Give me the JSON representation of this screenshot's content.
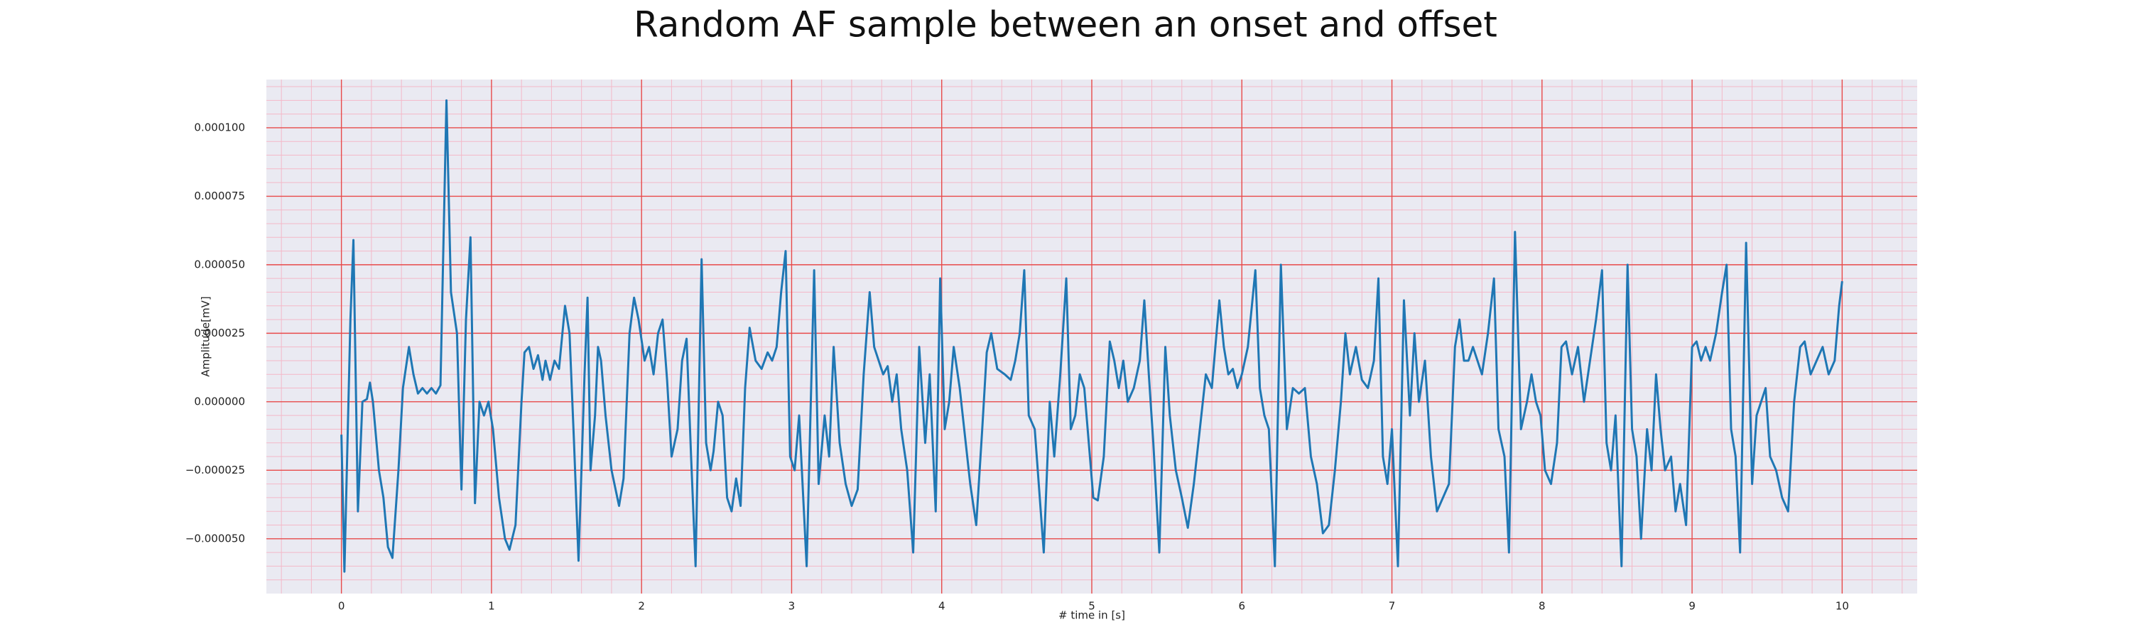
{
  "chart_data": {
    "type": "line",
    "title": "Random AF sample between an onset and offset",
    "xlabel": "# time in [s]",
    "ylabel": "Amplitude[mV]",
    "x": [
      0.0,
      0.02,
      0.06,
      0.08,
      0.11,
      0.14,
      0.17,
      0.19,
      0.21,
      0.25,
      0.28,
      0.31,
      0.34,
      0.38,
      0.41,
      0.45,
      0.48,
      0.51,
      0.54,
      0.57,
      0.6,
      0.63,
      0.66,
      0.7,
      0.73,
      0.77,
      0.8,
      0.83,
      0.86,
      0.89,
      0.92,
      0.95,
      0.98,
      1.01,
      1.05,
      1.09,
      1.12,
      1.16,
      1.2,
      1.22,
      1.25,
      1.28,
      1.31,
      1.34,
      1.36,
      1.39,
      1.42,
      1.45,
      1.49,
      1.52,
      1.55,
      1.58,
      1.62,
      1.64,
      1.66,
      1.69,
      1.71,
      1.73,
      1.76,
      1.8,
      1.85,
      1.88,
      1.92,
      1.95,
      1.98,
      2.02,
      2.05,
      2.08,
      2.11,
      2.14,
      2.17,
      2.2,
      2.24,
      2.27,
      2.3,
      2.33,
      2.36,
      2.4,
      2.43,
      2.46,
      2.48,
      2.51,
      2.54,
      2.57,
      2.6,
      2.63,
      2.66,
      2.69,
      2.72,
      2.76,
      2.8,
      2.84,
      2.87,
      2.9,
      2.93,
      2.96,
      2.99,
      3.02,
      3.05,
      3.1,
      3.15,
      3.18,
      3.22,
      3.25,
      3.28,
      3.32,
      3.36,
      3.4,
      3.44,
      3.48,
      3.52,
      3.55,
      3.58,
      3.61,
      3.64,
      3.67,
      3.7,
      3.73,
      3.77,
      3.81,
      3.85,
      3.89,
      3.92,
      3.96,
      3.99,
      4.02,
      4.05,
      4.08,
      4.12,
      4.16,
      4.19,
      4.23,
      4.27,
      4.3,
      4.33,
      4.37,
      4.42,
      4.46,
      4.49,
      4.52,
      4.55,
      4.58,
      4.62,
      4.68,
      4.72,
      4.75,
      4.79,
      4.83,
      4.86,
      4.89,
      4.92,
      4.95,
      4.98,
      5.01,
      5.04,
      5.08,
      5.12,
      5.15,
      5.18,
      5.21,
      5.24,
      5.28,
      5.32,
      5.35,
      5.38,
      5.41,
      5.45,
      5.49,
      5.52,
      5.56,
      5.6,
      5.64,
      5.68,
      5.72,
      5.76,
      5.8,
      5.85,
      5.88,
      5.91,
      5.94,
      5.97,
      6.0,
      6.04,
      6.09,
      6.12,
      6.15,
      6.18,
      6.22,
      6.26,
      6.3,
      6.34,
      6.38,
      6.42,
      6.46,
      6.5,
      6.54,
      6.58,
      6.62,
      6.66,
      6.69,
      6.72,
      6.76,
      6.8,
      6.84,
      6.88,
      6.91,
      6.94,
      6.97,
      7.0,
      7.04,
      7.08,
      7.12,
      7.15,
      7.18,
      7.22,
      7.26,
      7.3,
      7.34,
      7.38,
      7.42,
      7.45,
      7.48,
      7.51,
      7.54,
      7.57,
      7.6,
      7.64,
      7.68,
      7.71,
      7.75,
      7.78,
      7.82,
      7.86,
      7.9,
      7.93,
      7.96,
      7.99,
      8.02,
      8.06,
      8.1,
      8.13,
      8.16,
      8.2,
      8.24,
      8.28,
      8.32,
      8.36,
      8.4,
      8.43,
      8.46,
      8.49,
      8.53,
      8.57,
      8.6,
      8.63,
      8.66,
      8.7,
      8.73,
      8.76,
      8.79,
      8.82,
      8.86,
      8.89,
      8.92,
      8.96,
      9.0,
      9.03,
      9.06,
      9.09,
      9.12,
      9.16,
      9.2,
      9.23,
      9.26,
      9.29,
      9.32,
      9.36,
      9.4,
      9.43,
      9.46,
      9.49,
      9.52,
      9.56,
      9.6,
      9.64,
      9.68,
      9.72,
      9.75,
      9.79,
      9.83,
      9.87,
      9.91,
      9.95,
      9.98,
      10.0
    ],
    "series": [
      {
        "color": "#1f77b4",
        "values": [
          -1.2e-05,
          -6.2e-05,
          3e-05,
          5.9e-05,
          -4e-05,
          0,
          1e-06,
          7e-06,
          0,
          -2.5e-05,
          -3.5e-05,
          -5.3e-05,
          -5.7e-05,
          -2.5e-05,
          5e-06,
          2e-05,
          1e-05,
          3e-06,
          5e-06,
          3e-06,
          5e-06,
          3e-06,
          6e-06,
          0.00011,
          4e-05,
          2.5e-05,
          -3.2e-05,
          3e-05,
          6e-05,
          -3.7e-05,
          0,
          -5e-06,
          0,
          -1e-05,
          -3.5e-05,
          -5e-05,
          -5.4e-05,
          -4.5e-05,
          0,
          1.8e-05,
          2e-05,
          1.2e-05,
          1.7e-05,
          8e-06,
          1.5e-05,
          8e-06,
          1.5e-05,
          1.2e-05,
          3.5e-05,
          2.5e-05,
          -1.5e-05,
          -5.8e-05,
          1e-05,
          3.8e-05,
          -2.5e-05,
          -5e-06,
          2e-05,
          1.5e-05,
          -5e-06,
          -2.5e-05,
          -3.8e-05,
          -2.8e-05,
          2.5e-05,
          3.8e-05,
          3e-05,
          1.5e-05,
          2e-05,
          1e-05,
          2.5e-05,
          3e-05,
          8e-06,
          -2e-05,
          -1e-05,
          1.5e-05,
          2.3e-05,
          -2e-05,
          -6e-05,
          5.2e-05,
          -1.5e-05,
          -2.5e-05,
          -1.8e-05,
          0,
          -5e-06,
          -3.5e-05,
          -4e-05,
          -2.8e-05,
          -3.8e-05,
          5e-06,
          2.7e-05,
          1.5e-05,
          1.2e-05,
          1.8e-05,
          1.5e-05,
          2e-05,
          4e-05,
          5.5e-05,
          -2e-05,
          -2.5e-05,
          -5e-06,
          -6e-05,
          4.8e-05,
          -3e-05,
          -5e-06,
          -2e-05,
          2e-05,
          -1.5e-05,
          -3e-05,
          -3.8e-05,
          -3.2e-05,
          1e-05,
          4e-05,
          2e-05,
          1.5e-05,
          1e-05,
          1.3e-05,
          0,
          1e-05,
          -1e-05,
          -2.5e-05,
          -5.5e-05,
          2e-05,
          -1.5e-05,
          1e-05,
          -4e-05,
          4.5e-05,
          -1e-05,
          0,
          2e-05,
          5e-06,
          -1.5e-05,
          -3e-05,
          -4.5e-05,
          -1e-05,
          1.8e-05,
          2.5e-05,
          1.2e-05,
          1e-05,
          8e-06,
          1.5e-05,
          2.5e-05,
          4.8e-05,
          -5e-06,
          -1e-05,
          -5.5e-05,
          0,
          -2e-05,
          1e-05,
          4.5e-05,
          -1e-05,
          -5e-06,
          1e-05,
          5e-06,
          -1.5e-05,
          -3.5e-05,
          -3.6e-05,
          -2e-05,
          2.2e-05,
          1.5e-05,
          5e-06,
          1.5e-05,
          0,
          5e-06,
          1.5e-05,
          3.7e-05,
          1e-05,
          -1.5e-05,
          -5.5e-05,
          2e-05,
          -5e-06,
          -2.5e-05,
          -3.5e-05,
          -4.6e-05,
          -3e-05,
          -1e-05,
          1e-05,
          5e-06,
          3.7e-05,
          2e-05,
          1e-05,
          1.2e-05,
          5e-06,
          1e-05,
          2e-05,
          4.8e-05,
          5e-06,
          -5e-06,
          -1e-05,
          -6e-05,
          5e-05,
          -1e-05,
          5e-06,
          3e-06,
          5e-06,
          -2e-05,
          -3e-05,
          -4.8e-05,
          -4.5e-05,
          -2.5e-05,
          0,
          2.5e-05,
          1e-05,
          2e-05,
          8e-06,
          5e-06,
          1.5e-05,
          4.5e-05,
          -2e-05,
          -3e-05,
          -1e-05,
          -6e-05,
          3.7e-05,
          -5e-06,
          2.5e-05,
          0,
          1.5e-05,
          -2e-05,
          -4e-05,
          -3.5e-05,
          -3e-05,
          2e-05,
          3e-05,
          1.5e-05,
          1.5e-05,
          2e-05,
          1.5e-05,
          1e-05,
          2.5e-05,
          4.5e-05,
          -1e-05,
          -2e-05,
          -5.5e-05,
          6.2e-05,
          -1e-05,
          0,
          1e-05,
          0,
          -5e-06,
          -2.5e-05,
          -3e-05,
          -1.5e-05,
          2e-05,
          2.2e-05,
          1e-05,
          2e-05,
          0,
          1.5e-05,
          3e-05,
          4.8e-05,
          -1.5e-05,
          -2.5e-05,
          -5e-06,
          -6e-05,
          5e-05,
          -1e-05,
          -2e-05,
          -5e-05,
          -1e-05,
          -2.5e-05,
          1e-05,
          -1e-05,
          -2.5e-05,
          -2e-05,
          -4e-05,
          -3e-05,
          -4.5e-05,
          2e-05,
          2.2e-05,
          1.5e-05,
          2e-05,
          1.5e-05,
          2.5e-05,
          4e-05,
          5e-05,
          -1e-05,
          -2e-05,
          -5.5e-05,
          5.8e-05,
          -3e-05,
          -5e-06,
          0,
          5e-06,
          -2e-05,
          -2.5e-05,
          -3.5e-05,
          -4e-05,
          0,
          2e-05,
          2.2e-05,
          1e-05,
          1.5e-05,
          2e-05,
          1e-05,
          1.5e-05,
          3.5e-05,
          4.4e-05
        ]
      }
    ],
    "xlim": [
      -0.5,
      10.5
    ],
    "ylim": [
      -7e-05,
      0.0001176
    ],
    "xticks": [
      0,
      1,
      2,
      3,
      4,
      5,
      6,
      7,
      8,
      9,
      10
    ],
    "yticks": [
      {
        "value": -5e-05,
        "label": "−0.000050"
      },
      {
        "value": -2.5e-05,
        "label": "−0.000025"
      },
      {
        "value": 0,
        "label": "0.000000"
      },
      {
        "value": 2.5e-05,
        "label": "0.000025"
      },
      {
        "value": 5e-05,
        "label": "0.000050"
      },
      {
        "value": 7.5e-05,
        "label": "0.000075"
      },
      {
        "value": 0.0001,
        "label": "0.000100"
      }
    ],
    "xminorticks": [
      -0.4,
      -0.2,
      0.2,
      0.4,
      0.6,
      0.8,
      1.2,
      1.4,
      1.6,
      1.8,
      2.2,
      2.4,
      2.6,
      2.8,
      3.2,
      3.4,
      3.6,
      3.8,
      4.2,
      4.4,
      4.6,
      4.8,
      5.2,
      5.4,
      5.6,
      5.8,
      6.2,
      6.4,
      6.6,
      6.8,
      7.2,
      7.4,
      7.6,
      7.8,
      8.2,
      8.4,
      8.6,
      8.8,
      9.2,
      9.4,
      9.6,
      9.8,
      10.2,
      10.4
    ],
    "yminorticks": [
      -6.5e-05,
      -6e-05,
      -5.5e-05,
      -4.5e-05,
      -4e-05,
      -3.5e-05,
      -3e-05,
      -2e-05,
      -1.5e-05,
      -1e-05,
      -5e-06,
      5e-06,
      1e-05,
      1.5e-05,
      2e-05,
      3e-05,
      3.5e-05,
      4e-05,
      4.5e-05,
      5.5e-05,
      6e-05,
      6.5e-05,
      7e-05,
      8e-05,
      8.5e-05,
      9e-05,
      9.5e-05,
      0.000105,
      0.00011,
      0.000115
    ],
    "grid": true
  }
}
